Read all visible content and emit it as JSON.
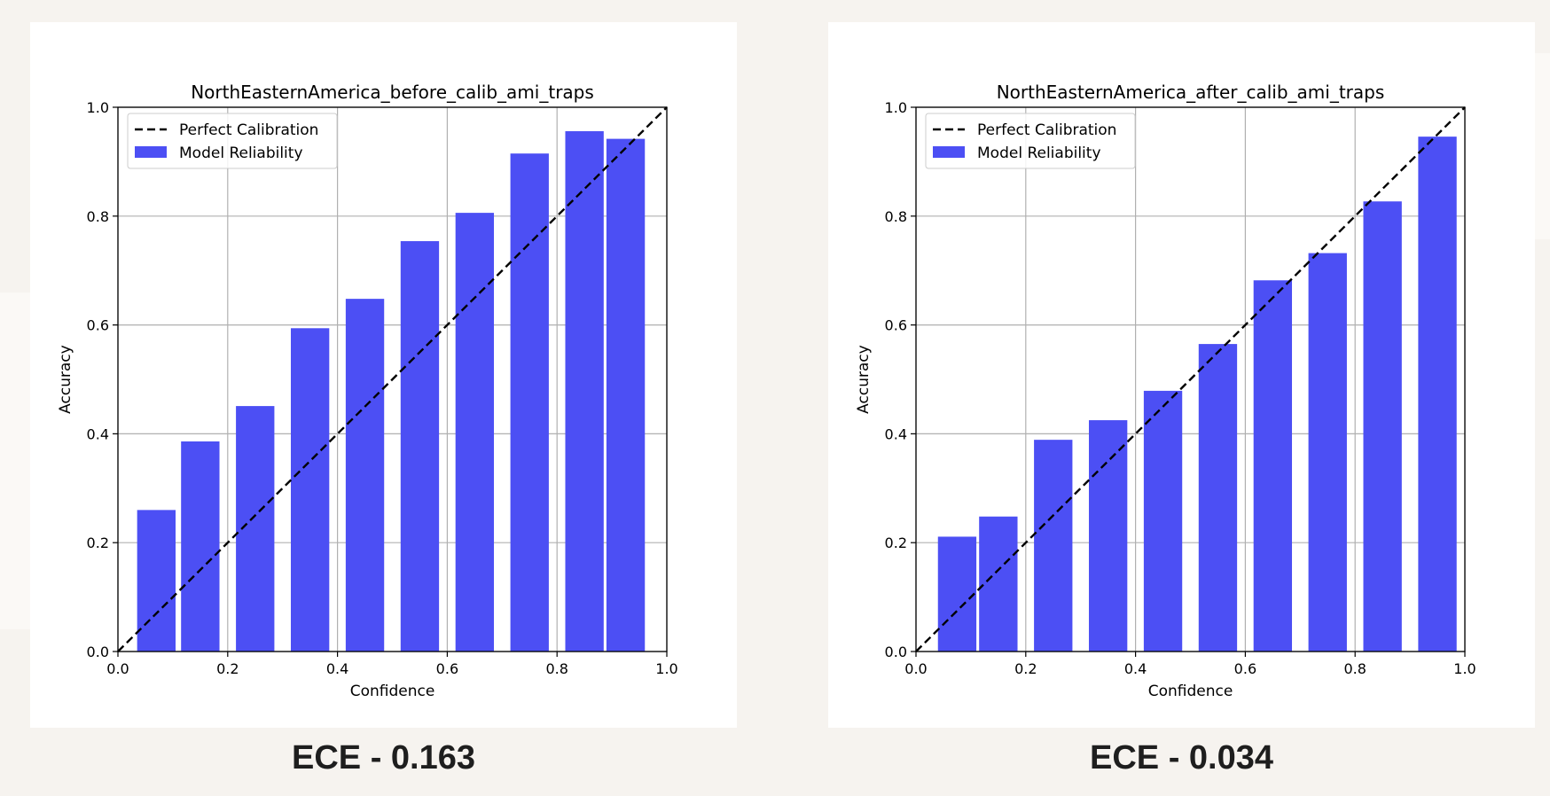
{
  "colors": {
    "bar": "#4c4ff4",
    "grid": "#b0b0b0",
    "diagonal": "#000000",
    "ece_text": "#1e1e1e"
  },
  "chart_data": [
    {
      "type": "bar",
      "title": "NorthEasternAmerica_before_calib_ami_traps",
      "xlabel": "Confidence",
      "ylabel": "Accuracy",
      "xlim": [
        0,
        1
      ],
      "ylim": [
        0,
        1
      ],
      "xticks": [
        "0.0",
        "0.2",
        "0.4",
        "0.6",
        "0.8",
        "1.0"
      ],
      "yticks": [
        "0.0",
        "0.2",
        "0.4",
        "0.6",
        "0.8",
        "1.0"
      ],
      "grid": true,
      "legend_position": "top-left",
      "legend": [
        "Perfect Calibration",
        "Model Reliability"
      ],
      "bins": [
        {
          "center": 0.07,
          "accuracy": 0.26
        },
        {
          "center": 0.15,
          "accuracy": 0.386
        },
        {
          "center": 0.25,
          "accuracy": 0.451
        },
        {
          "center": 0.35,
          "accuracy": 0.594
        },
        {
          "center": 0.45,
          "accuracy": 0.648
        },
        {
          "center": 0.55,
          "accuracy": 0.754
        },
        {
          "center": 0.65,
          "accuracy": 0.806
        },
        {
          "center": 0.75,
          "accuracy": 0.915
        },
        {
          "center": 0.85,
          "accuracy": 0.956
        },
        {
          "center": 0.925,
          "accuracy": 0.942
        }
      ],
      "ece_label": "ECE - 0.163"
    },
    {
      "type": "bar",
      "title": "NorthEasternAmerica_after_calib_ami_traps",
      "xlabel": "Confidence",
      "ylabel": "Accuracy",
      "xlim": [
        0,
        1
      ],
      "ylim": [
        0,
        1
      ],
      "xticks": [
        "0.0",
        "0.2",
        "0.4",
        "0.6",
        "0.8",
        "1.0"
      ],
      "yticks": [
        "0.0",
        "0.2",
        "0.4",
        "0.6",
        "0.8",
        "1.0"
      ],
      "grid": true,
      "legend_position": "top-left",
      "legend": [
        "Perfect Calibration",
        "Model Reliability"
      ],
      "bins": [
        {
          "center": 0.075,
          "accuracy": 0.211
        },
        {
          "center": 0.15,
          "accuracy": 0.248
        },
        {
          "center": 0.25,
          "accuracy": 0.389
        },
        {
          "center": 0.35,
          "accuracy": 0.425
        },
        {
          "center": 0.45,
          "accuracy": 0.479
        },
        {
          "center": 0.55,
          "accuracy": 0.565
        },
        {
          "center": 0.65,
          "accuracy": 0.682
        },
        {
          "center": 0.75,
          "accuracy": 0.732
        },
        {
          "center": 0.85,
          "accuracy": 0.827
        },
        {
          "center": 0.95,
          "accuracy": 0.946
        }
      ],
      "ece_label": "ECE - 0.034"
    }
  ]
}
